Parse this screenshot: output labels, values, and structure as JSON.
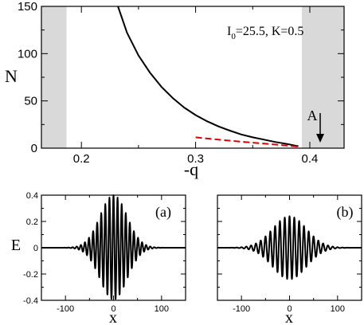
{
  "colors": {
    "curve": "#000000",
    "dashed": "#e00000",
    "shade": "#d9d9d9",
    "axes": "#000000"
  },
  "chart_data": [
    {
      "type": "line",
      "xlabel": "-q",
      "ylabel": "N",
      "xlim": [
        0.165,
        0.43
      ],
      "ylim": [
        0,
        150
      ],
      "xticks": [
        "0.2",
        "0.3",
        "0.4"
      ],
      "yticks": [
        "0",
        "50",
        "100",
        "150"
      ],
      "annotation": "I0=25.5, K=0.5",
      "annotation_main": "I",
      "annotation_sub": "0",
      "annotation_rest": "=25.5, K=0.5",
      "shaded_x_ranges": [
        [
          0.165,
          0.187
        ],
        [
          0.393,
          0.43
        ]
      ],
      "point_label": "A",
      "point_x": 0.391,
      "series": [
        {
          "style": "solid",
          "x": [
            0.232,
            0.24,
            0.25,
            0.26,
            0.27,
            0.28,
            0.29,
            0.3,
            0.31,
            0.32,
            0.33,
            0.34,
            0.35,
            0.36,
            0.37,
            0.38,
            0.39
          ],
          "y": [
            150,
            122,
            98,
            80,
            65,
            53,
            43,
            35,
            28.5,
            23,
            18.5,
            14.5,
            11.5,
            9,
            6.5,
            4.5,
            2
          ]
        },
        {
          "style": "dashed",
          "x": [
            0.3,
            0.32,
            0.34,
            0.36,
            0.38,
            0.39
          ],
          "y": [
            11.5,
            9,
            6.8,
            4.8,
            2.8,
            1.5
          ]
        }
      ]
    },
    {
      "type": "line",
      "panel_label": "(a)",
      "xlabel": "x",
      "ylabel": "E",
      "xlim": [
        -150,
        150
      ],
      "ylim": [
        -0.4,
        0.4
      ],
      "xticks": [
        "-100",
        "0",
        "100"
      ],
      "yticks": [
        "-0.4",
        "-0.2",
        "0",
        "0.2",
        "0.4"
      ],
      "series": [
        {
          "style": "solid",
          "peak_amplitude": 0.4,
          "envelope_sigma": 28,
          "wavelength": 8.5
        }
      ]
    },
    {
      "type": "line",
      "panel_label": "(b)",
      "xlabel": "x",
      "xlim": [
        -150,
        150
      ],
      "ylim": [
        -0.4,
        0.4
      ],
      "xticks": [
        "-100",
        "0",
        "100"
      ],
      "series": [
        {
          "style": "solid",
          "peak_amplitude": 0.24,
          "envelope_sigma": 35,
          "wavelength": 10
        }
      ]
    }
  ]
}
